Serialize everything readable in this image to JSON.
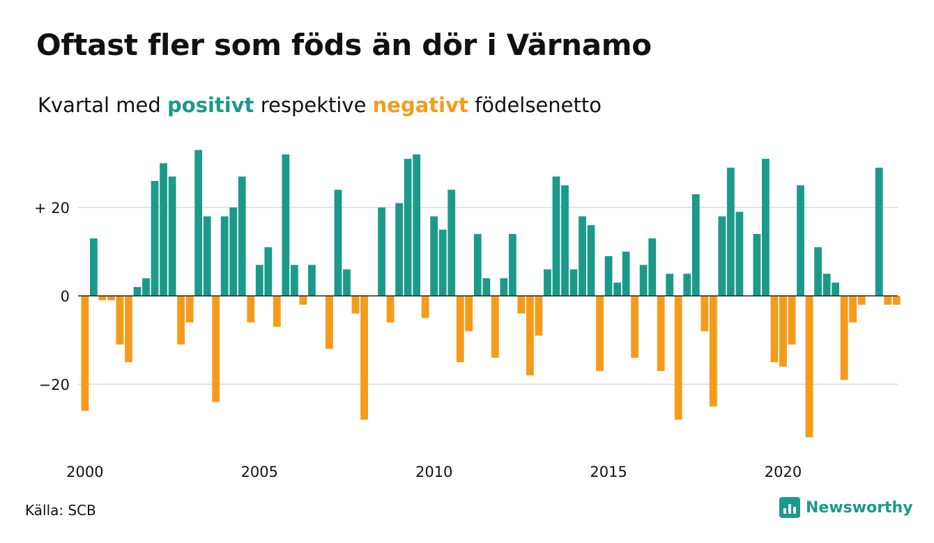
{
  "title": "Oftast fler som föds än dör i Värnamo",
  "subtitle": {
    "prefix": "Kvartal med ",
    "positive_word": "positivt",
    "middle": " respektive ",
    "negative_word": "negativt",
    "suffix": " födelsenetto"
  },
  "source": "Källa: SCB",
  "brand": {
    "name": "Newsworthy",
    "icon": "newsworthy-logo-icon"
  },
  "colors": {
    "positive": "#1b9a8a",
    "negative": "#f59b1c",
    "grid": "#e3e3e3",
    "baseline": "#222222"
  },
  "chart_data": {
    "type": "bar",
    "x_start_year": 2000,
    "periods_per_year": 4,
    "values": [
      -26,
      13,
      -1,
      -1,
      -11,
      -15,
      2,
      4,
      26,
      30,
      27,
      -11,
      -6,
      33,
      18,
      -24,
      18,
      20,
      27,
      -6,
      7,
      11,
      -7,
      32,
      7,
      -2,
      7,
      0,
      -12,
      24,
      6,
      -4,
      -28,
      0,
      20,
      -6,
      21,
      31,
      32,
      -5,
      18,
      15,
      24,
      -15,
      -8,
      14,
      4,
      -14,
      4,
      14,
      -4,
      -18,
      -9,
      6,
      27,
      25,
      6,
      18,
      16,
      -17,
      9,
      3,
      10,
      -14,
      7,
      13,
      -17,
      5,
      -28,
      5,
      23,
      -8,
      -25,
      18,
      29,
      19,
      0,
      14,
      31,
      -15,
      -16,
      -11,
      25,
      -32,
      11,
      5,
      3,
      -19,
      -6,
      -2,
      0,
      29,
      -2,
      -2
    ],
    "y_ticks": [
      {
        "value": 20,
        "label": "+ 20"
      },
      {
        "value": 0,
        "label": "0"
      },
      {
        "value": -20,
        "label": "−20"
      }
    ],
    "x_ticks": [
      {
        "value": 2000,
        "label": "2000"
      },
      {
        "value": 2005,
        "label": "2005"
      },
      {
        "value": 2010,
        "label": "2010"
      },
      {
        "value": 2015,
        "label": "2015"
      },
      {
        "value": 2020,
        "label": "2020"
      }
    ],
    "ylim": [
      -35,
      35
    ],
    "grid": true,
    "legend": "none"
  }
}
